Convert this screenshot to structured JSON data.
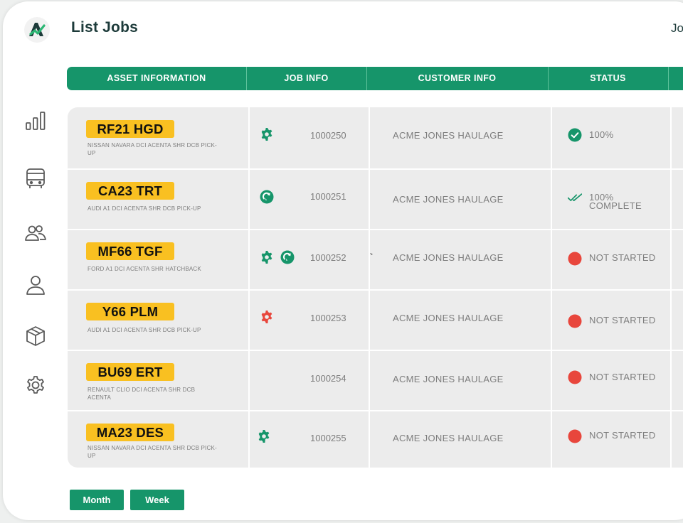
{
  "header": {
    "title": "List Jobs",
    "top_right_text": "Jo"
  },
  "sidebar": {
    "items": [
      {
        "name": "analytics",
        "icon": "bar-chart-icon"
      },
      {
        "name": "vehicles",
        "icon": "bus-icon"
      },
      {
        "name": "customers",
        "icon": "users-icon"
      },
      {
        "name": "profile",
        "icon": "user-icon"
      },
      {
        "name": "inventory",
        "icon": "box-icon"
      },
      {
        "name": "settings",
        "icon": "gear-icon"
      }
    ]
  },
  "table": {
    "columns": [
      "ASSET INFORMATION",
      "JOB INFO",
      "CUSTOMER INFO",
      "STATUS"
    ],
    "rows": [
      {
        "plate": "RF21 HGD",
        "vehicle": "NISSAN NAVARA DCI ACENTA SHR DCB PICK-UP",
        "job_icons": [
          "green-gear-icon"
        ],
        "job_number": "1000250",
        "customer": "ACME JONES HAULAGE",
        "status_icon": "green-check-circle-icon",
        "status_lines": [
          "100%"
        ]
      },
      {
        "plate": "CA23 TRT",
        "vehicle": "AUDI A1 DCI ACENTA SHR DCB PICK-UP",
        "job_icons": [
          "green-refresh-icon"
        ],
        "job_number": "1000251",
        "customer": "ACME JONES HAULAGE",
        "status_icon": "double-check-icon",
        "status_lines": [
          "100%",
          "COMPLETE"
        ]
      },
      {
        "plate": "MF66 TGF",
        "vehicle": "FORD A1 DCI ACENTA SHR HATCHBACK",
        "job_icons": [
          "green-gear-icon",
          "green-refresh-icon"
        ],
        "job_number": "1000252",
        "customer": "ACME JONES HAULAGE",
        "status_icon": "red-dot-icon",
        "status_lines": [
          "NOT STARTED"
        ]
      },
      {
        "plate": "Y66 PLM",
        "vehicle": "AUDI A1 DCI ACENTA SHR DCB PICK-UP",
        "job_icons": [
          "red-gear-icon"
        ],
        "job_number": "1000253",
        "customer": "ACME JONES HAULAGE",
        "status_icon": "red-dot-icon",
        "status_lines": [
          "NOT STARTED"
        ]
      },
      {
        "plate": "BU69 ERT",
        "vehicle": "RENAULT CLIO DCI ACENTA SHR DCB ACENTA",
        "job_icons": [],
        "job_number": "1000254",
        "customer": "ACME JONES HAULAGE",
        "status_icon": "red-dot-icon",
        "status_lines": [
          "NOT STARTED"
        ]
      },
      {
        "plate": "MA23 DES",
        "vehicle": "NISSAN NAVARA DCI ACENTA SHR DCB PICK-UP",
        "job_icons": [
          "green-gear-icon"
        ],
        "job_number": "1000255",
        "customer": "ACME JONES HAULAGE",
        "status_icon": "red-dot-icon",
        "status_lines": [
          "NOT STARTED"
        ]
      }
    ]
  },
  "filters": {
    "month_label": "Month",
    "week_label": "Week"
  },
  "colors": {
    "primary": "#16956a",
    "plate": "#f9c021",
    "danger": "#e8463c",
    "text_dark": "#1d3b3a",
    "text_muted": "#7d7d7d"
  }
}
